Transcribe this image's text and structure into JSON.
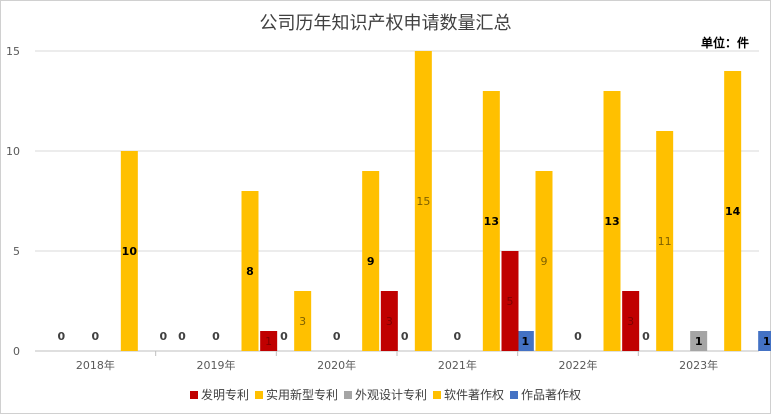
{
  "chart_data": {
    "type": "bar",
    "title": "公司历年知识产权申请数量汇总",
    "unit_label": "单位：件",
    "categories": [
      "2018年",
      "2019年",
      "2020年",
      "2021年",
      "2022年",
      "2023年"
    ],
    "ylim": [
      0,
      15
    ],
    "yticks": [
      0,
      5,
      10,
      15
    ],
    "grid": true,
    "legend_position": "bottom",
    "series": [
      {
        "name": "发明专利",
        "color": "#C00000",
        "values": [
          0,
          0,
          1,
          3,
          5,
          3
        ],
        "labels": [
          "",
          "",
          "1",
          "3",
          "5",
          "3"
        ]
      },
      {
        "name": "实用新型专利",
        "color": "#FFC000",
        "values": [
          0,
          0,
          3,
          15,
          9,
          11
        ],
        "labels": [
          "0",
          "0",
          "3",
          "15",
          "9",
          "11"
        ]
      },
      {
        "name": "外观设计专利",
        "color": "#A5A5A5",
        "values": [
          0,
          0,
          0,
          0,
          0,
          1
        ],
        "labels": [
          "0",
          "0",
          "0",
          "0",
          "0",
          "1"
        ]
      },
      {
        "name": "软件著作权",
        "color": "#FFC000",
        "values": [
          10,
          8,
          9,
          13,
          13,
          14
        ],
        "labels": [
          "10",
          "8",
          "9",
          "13",
          "13",
          "14"
        ]
      },
      {
        "name": "作品著作权",
        "color": "#4472C4",
        "values": [
          0,
          0,
          0,
          1,
          0,
          1
        ],
        "labels": [
          "0",
          "0",
          "0",
          "1",
          "0",
          "1"
        ]
      }
    ]
  }
}
